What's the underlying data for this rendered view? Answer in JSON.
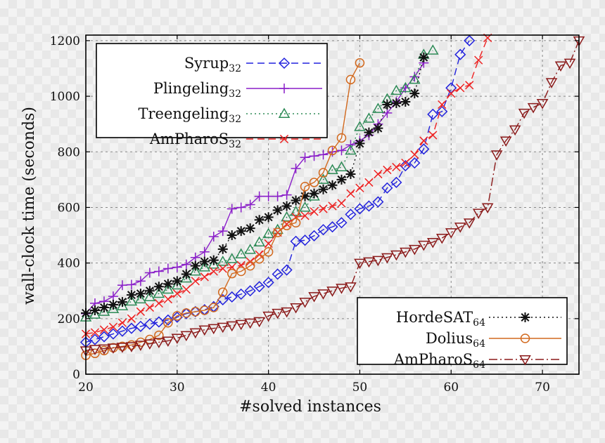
{
  "chart_data": {
    "type": "line",
    "title": "",
    "xlabel": "#solved instances",
    "ylabel": "wall-clock time (seconds)",
    "xlim": [
      20,
      74
    ],
    "ylim": [
      0,
      1220
    ],
    "xticks": [
      "20",
      "30",
      "40",
      "50",
      "60",
      "70"
    ],
    "yticks": [
      "0",
      "200",
      "400",
      "600",
      "800",
      "1000",
      "1200"
    ],
    "grid": true,
    "legends": [
      {
        "placement": "top-left",
        "entries": [
          "Syrup32",
          "Plingeling32",
          "Treengeling32",
          "AmPharoS32"
        ]
      },
      {
        "placement": "bottom-right",
        "entries": [
          "HordeSAT64",
          "Dolius64",
          "AmPharoS64"
        ]
      }
    ],
    "series": [
      {
        "name": "Syrup32",
        "legend_main": "Syrup",
        "legend_sub": "32",
        "color": "#2222dd",
        "marker": "diamond",
        "dash": "10,6",
        "x": [
          20,
          21,
          22,
          23,
          24,
          25,
          26,
          27,
          28,
          29,
          30,
          31,
          32,
          33,
          34,
          35,
          36,
          37,
          38,
          39,
          40,
          41,
          42,
          43,
          44,
          45,
          46,
          47,
          48,
          49,
          50,
          51,
          52,
          53,
          54,
          55,
          56,
          57,
          58,
          59,
          60,
          61,
          62
        ],
        "y": [
          115,
          125,
          135,
          145,
          155,
          165,
          172,
          180,
          188,
          195,
          205,
          218,
          225,
          232,
          243,
          268,
          278,
          288,
          300,
          315,
          330,
          360,
          375,
          478,
          482,
          498,
          520,
          530,
          545,
          575,
          595,
          605,
          620,
          670,
          690,
          750,
          760,
          810,
          935,
          945,
          1030,
          1150,
          1200
        ]
      },
      {
        "name": "Plingeling32",
        "legend_main": "Plingeling",
        "legend_sub": "32",
        "color": "#8a1fc9",
        "marker": "plus",
        "dash": "",
        "x": [
          20,
          21,
          22,
          23,
          24,
          25,
          26,
          27,
          28,
          29,
          30,
          31,
          32,
          33,
          34,
          35,
          36,
          37,
          38,
          39,
          40,
          41,
          42,
          43,
          44,
          45,
          46,
          47,
          48,
          49,
          50,
          51,
          52,
          53,
          54,
          55,
          56,
          57
        ],
        "y": [
          218,
          255,
          262,
          280,
          320,
          322,
          335,
          365,
          370,
          380,
          385,
          395,
          420,
          440,
          495,
          515,
          595,
          600,
          610,
          640,
          640,
          640,
          645,
          740,
          780,
          785,
          790,
          800,
          805,
          825,
          840,
          860,
          900,
          940,
          980,
          1030,
          1070,
          1120
        ]
      },
      {
        "name": "Treengeling32",
        "legend_main": "Treengeling",
        "legend_sub": "32",
        "color": "#2e8b57",
        "marker": "triangle",
        "dash": "2,4",
        "x": [
          20,
          21,
          22,
          23,
          24,
          25,
          26,
          27,
          28,
          29,
          30,
          31,
          32,
          33,
          34,
          35,
          36,
          37,
          38,
          39,
          40,
          41,
          42,
          43,
          44,
          45,
          46,
          47,
          48,
          49,
          50,
          51,
          52,
          53,
          54,
          55,
          56,
          57,
          58
        ],
        "y": [
          205,
          215,
          225,
          235,
          245,
          262,
          270,
          278,
          290,
          305,
          320,
          345,
          370,
          385,
          395,
          405,
          415,
          432,
          448,
          475,
          505,
          520,
          565,
          585,
          600,
          640,
          700,
          735,
          745,
          805,
          890,
          920,
          955,
          990,
          1020,
          1030,
          1060,
          1150,
          1165
        ]
      },
      {
        "name": "AmPharoS32",
        "legend_main": "AmPharoS",
        "legend_sub": "32",
        "color": "#ee2222",
        "marker": "x",
        "dash": "10,6",
        "x": [
          20,
          21,
          22,
          23,
          24,
          25,
          26,
          27,
          28,
          29,
          30,
          31,
          32,
          33,
          34,
          35,
          36,
          37,
          38,
          39,
          40,
          41,
          42,
          43,
          44,
          45,
          46,
          47,
          48,
          49,
          50,
          51,
          52,
          53,
          54,
          55,
          56,
          57,
          58,
          59,
          60,
          61,
          62,
          63,
          64
        ],
        "y": [
          145,
          150,
          160,
          170,
          185,
          200,
          225,
          240,
          255,
          270,
          290,
          305,
          335,
          350,
          370,
          380,
          385,
          392,
          405,
          430,
          470,
          510,
          540,
          565,
          570,
          585,
          595,
          605,
          615,
          650,
          670,
          690,
          720,
          735,
          745,
          760,
          790,
          840,
          860,
          970,
          1010,
          1030,
          1040,
          1130,
          1210
        ]
      },
      {
        "name": "HordeSAT64",
        "legend_main": "HordeSAT",
        "legend_sub": "64",
        "color": "#111111",
        "marker": "asterisk",
        "dash": "2,4",
        "x": [
          20,
          21,
          22,
          23,
          24,
          25,
          26,
          27,
          28,
          29,
          30,
          31,
          32,
          33,
          34,
          35,
          36,
          37,
          38,
          39,
          40,
          41,
          42,
          43,
          44,
          45,
          46,
          47,
          48,
          49,
          50,
          51,
          52,
          53,
          54,
          55,
          56,
          57
        ],
        "y": [
          220,
          230,
          240,
          250,
          260,
          285,
          290,
          300,
          315,
          325,
          335,
          360,
          390,
          405,
          410,
          450,
          500,
          515,
          525,
          555,
          565,
          590,
          605,
          625,
          640,
          650,
          665,
          680,
          700,
          720,
          830,
          870,
          885,
          970,
          975,
          980,
          1010,
          1140
        ]
      },
      {
        "name": "Dolius64",
        "legend_main": "Dolius",
        "legend_sub": "64",
        "color": "#d2691e",
        "marker": "circle",
        "dash": "",
        "x": [
          20,
          21,
          22,
          23,
          24,
          25,
          26,
          27,
          28,
          29,
          30,
          31,
          32,
          33,
          34,
          35,
          36,
          37,
          38,
          39,
          40,
          41,
          42,
          43,
          44,
          45,
          46,
          47,
          48,
          49,
          50
        ],
        "y": [
          68,
          75,
          85,
          95,
          100,
          105,
          115,
          125,
          140,
          185,
          210,
          220,
          225,
          230,
          240,
          295,
          362,
          370,
          390,
          415,
          440,
          510,
          535,
          545,
          675,
          690,
          725,
          805,
          850,
          1060,
          1120
        ]
      },
      {
        "name": "AmPharoS64",
        "legend_main": "AmPharoS",
        "legend_sub": "64",
        "color": "#8b1a1a",
        "marker": "triangle-down",
        "dash": "12,4,2,4",
        "x": [
          20,
          21,
          22,
          23,
          24,
          25,
          26,
          27,
          28,
          29,
          30,
          31,
          32,
          33,
          34,
          35,
          36,
          37,
          38,
          39,
          40,
          41,
          42,
          43,
          44,
          45,
          46,
          47,
          48,
          49,
          50,
          51,
          52,
          53,
          54,
          55,
          56,
          57,
          58,
          59,
          60,
          61,
          62,
          63,
          64,
          65,
          66,
          67,
          68,
          69,
          70,
          71,
          72,
          73,
          74
        ],
        "y": [
          85,
          90,
          92,
          95,
          98,
          100,
          105,
          110,
          115,
          120,
          130,
          140,
          150,
          160,
          165,
          170,
          175,
          180,
          185,
          190,
          210,
          220,
          225,
          240,
          260,
          280,
          290,
          300,
          310,
          315,
          400,
          405,
          410,
          420,
          430,
          440,
          450,
          465,
          475,
          490,
          510,
          530,
          545,
          580,
          600,
          790,
          840,
          880,
          940,
          960,
          975,
          1050,
          1110,
          1120,
          1200
        ]
      }
    ]
  }
}
